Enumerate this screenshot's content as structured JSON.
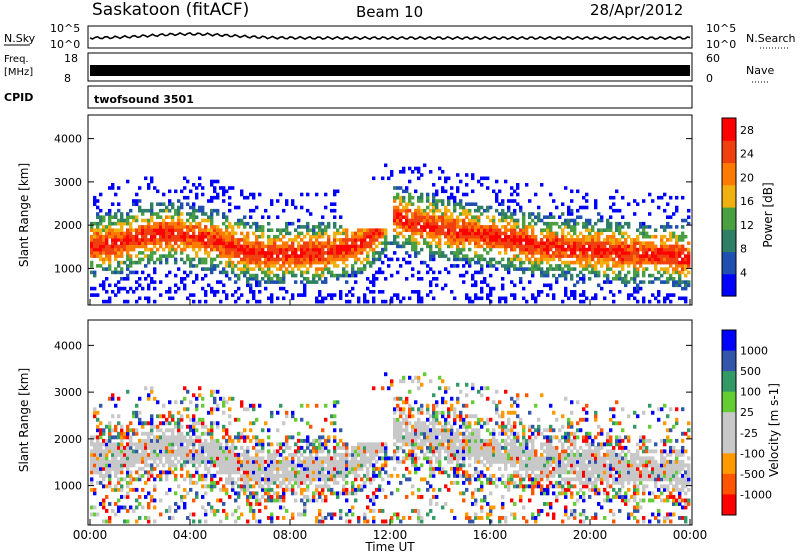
{
  "header": {
    "title": "Saskatoon (fitACF)",
    "beam": "Beam 10",
    "date": "28/Apr/2012"
  },
  "aux_panels": {
    "nsky": {
      "label": "N.Sky",
      "ticks": [
        "10^5",
        "10^0"
      ]
    },
    "nsearch": {
      "label": "N.Search",
      "ticks": [
        "10^5",
        "10^0"
      ]
    },
    "freq": {
      "label_line1": "Freq.",
      "label_line2": "[MHz]",
      "ticks": [
        "18",
        "8"
      ]
    },
    "nave": {
      "label": "Nave",
      "ticks": [
        "60",
        "0"
      ]
    },
    "cpid": {
      "label": "CPID",
      "value": "twofsound 3501"
    }
  },
  "colors": {
    "power_scale": [
      "#0000ff",
      "#1f4fb0",
      "#2f7f66",
      "#4aa040",
      "#f0b010",
      "#ff7a00",
      "#f04010",
      "#ff0000"
    ],
    "velocity_scale": [
      "#ff0000",
      "#ff5500",
      "#ff9900",
      "#c8c8c8",
      "#c8c8c8",
      "#66cc33",
      "#339966",
      "#3355aa",
      "#0000ff"
    ]
  },
  "chart_data": [
    {
      "type": "heatmap",
      "title": "",
      "ylabel": "Slant Range [km]",
      "y_ticks": [
        "1000",
        "2000",
        "3000",
        "4000"
      ],
      "ylim": [
        200,
        4500
      ],
      "colorbar": {
        "label": "Power [dB]",
        "ticks": [
          "4",
          "8",
          "12",
          "16",
          "20",
          "24",
          "28"
        ],
        "range": [
          0,
          30
        ]
      },
      "series": [
        {
          "name": "",
          "x_hours": [
            0,
            1,
            2,
            3,
            4,
            5,
            6,
            7,
            8,
            9,
            10,
            11,
            12,
            13,
            14,
            15,
            16,
            17,
            18,
            19,
            20,
            21,
            22,
            23,
            24
          ],
          "band_center_km": [
            1500,
            1550,
            1700,
            1800,
            1700,
            1600,
            1400,
            1300,
            1300,
            1300,
            1400,
            1600,
            2200,
            2000,
            1900,
            1800,
            1700,
            1600,
            1500,
            1450,
            1400,
            1350,
            1300,
            1300,
            1200
          ]
        }
      ]
    },
    {
      "type": "heatmap",
      "title": "",
      "ylabel": "Slant Range [km]",
      "xlabel": "Time UT",
      "x_ticks": [
        "00:00",
        "04:00",
        "08:00",
        "12:00",
        "16:00",
        "20:00",
        "00:00"
      ],
      "y_ticks": [
        "1000",
        "2000",
        "3000",
        "4000"
      ],
      "ylim": [
        200,
        4500
      ],
      "colorbar": {
        "label": "Velocity [m s-1]",
        "ticks": [
          "1000",
          "500",
          "100",
          "25",
          "-25",
          "-100",
          "-500",
          "-1000"
        ]
      }
    }
  ]
}
